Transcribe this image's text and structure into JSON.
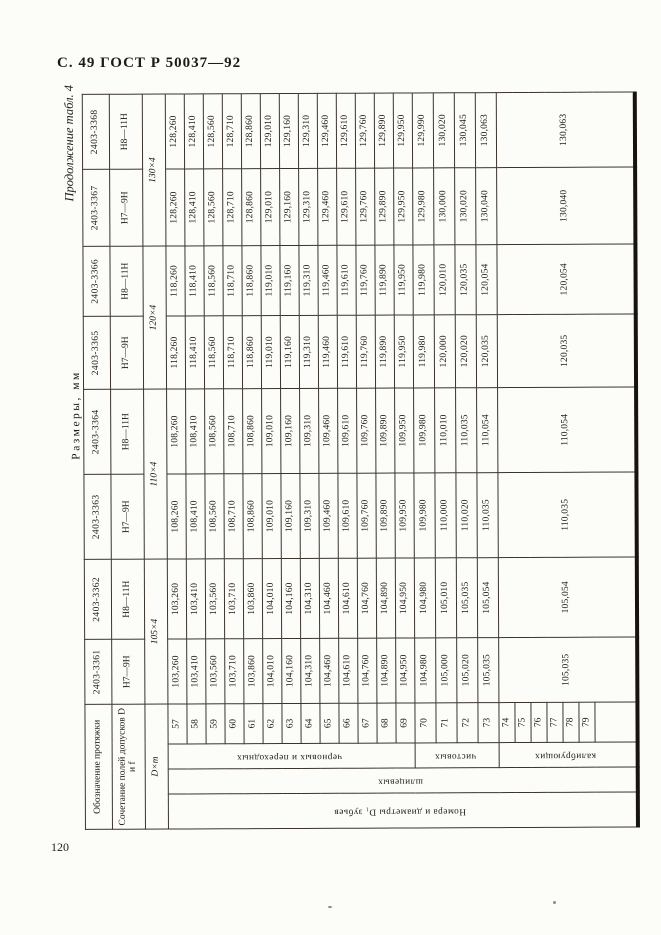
{
  "page": {
    "header": "С. 49 ГОСТ Р 50037—92",
    "continuation": "Продолжение табл. 4",
    "units": "Размеры, мм",
    "page_number": "120"
  },
  "table": {
    "header_rows": {
      "designation": "Обозначение протяжки",
      "tolerance": "Сочетание полей допусков D и f",
      "dxm": "D×m"
    },
    "stub": {
      "outer_label": "Номера и диаметры D₁ зубьев",
      "spline_label": "шлицевых",
      "groups": [
        {
          "label": "черновых и переходных",
          "rows": "57–69"
        },
        {
          "label": "чистовых",
          "rows": "70–73"
        },
        {
          "label": "калибрующих",
          "rows": "74–79"
        }
      ]
    },
    "row_numbers": [
      "57",
      "58",
      "59",
      "60",
      "61",
      "62",
      "63",
      "64",
      "65",
      "66",
      "67",
      "68",
      "69",
      "70",
      "71",
      "72",
      "73",
      "74",
      "75",
      "76",
      "77",
      "78",
      "79"
    ],
    "columns": [
      {
        "designation": "2403-3361",
        "tolerance": "Н7—9Н",
        "dxm": "105×4",
        "rough": [
          "103,260",
          "103,410",
          "103,560",
          "103,710",
          "103,860",
          "104,010",
          "104,160",
          "104,310",
          "104,460",
          "104,610",
          "104,760",
          "104,890",
          "104,950"
        ],
        "finishing": [
          "104,980",
          "105,000",
          "105,020",
          "105,035"
        ],
        "calibrating": "105,035"
      },
      {
        "designation": "2403-3362",
        "tolerance": "Н8—11Н",
        "dxm": "105×4",
        "rough": [
          "103,260",
          "103,410",
          "103,560",
          "103,710",
          "103,860",
          "104,010",
          "104,160",
          "104,310",
          "104,460",
          "104,610",
          "104,760",
          "104,890",
          "104,950"
        ],
        "finishing": [
          "104,980",
          "105,010",
          "105,035",
          "105,054"
        ],
        "calibrating": "105,054"
      },
      {
        "designation": "2403-3363",
        "tolerance": "Н7—9Н",
        "dxm": "110×4",
        "rough": [
          "108,260",
          "108,410",
          "108,560",
          "108,710",
          "108,860",
          "109,010",
          "109,160",
          "109,310",
          "109,460",
          "109,610",
          "109,760",
          "109,890",
          "109,950"
        ],
        "finishing": [
          "109,980",
          "110,000",
          "110,020",
          "110,035"
        ],
        "calibrating": "110,035"
      },
      {
        "designation": "2403-3364",
        "tolerance": "Н8—11Н",
        "dxm": "110×4",
        "rough": [
          "108,260",
          "108,410",
          "108,560",
          "108,710",
          "108,860",
          "109,010",
          "109,160",
          "109,310",
          "109,460",
          "109,610",
          "109,760",
          "109,890",
          "109,950"
        ],
        "finishing": [
          "109,980",
          "110,010",
          "110,035",
          "110,054"
        ],
        "calibrating": "110,054"
      },
      {
        "designation": "2403-3365",
        "tolerance": "Н7—9Н",
        "dxm": "120×4",
        "rough": [
          "118,260",
          "118,410",
          "118,560",
          "118,710",
          "118,860",
          "119,010",
          "119,160",
          "119,310",
          "119,460",
          "119,610",
          "119,760",
          "119,890",
          "119,950"
        ],
        "finishing": [
          "119,980",
          "120,000",
          "120,020",
          "120,035"
        ],
        "calibrating": "120,035"
      },
      {
        "designation": "2403-3366",
        "tolerance": "Н8—11Н",
        "dxm": "120×4",
        "rough": [
          "118,260",
          "118,410",
          "118,560",
          "118,710",
          "118,860",
          "119,010",
          "119,160",
          "119,310",
          "119,460",
          "119,610",
          "119,760",
          "119,890",
          "119,950"
        ],
        "finishing": [
          "119,980",
          "120,010",
          "120,035",
          "120,054"
        ],
        "calibrating": "120,054"
      },
      {
        "designation": "2403-3367",
        "tolerance": "Н7—9Н",
        "dxm": "130×4",
        "rough": [
          "128,260",
          "128,410",
          "128,560",
          "128,710",
          "128,860",
          "129,010",
          "129,160",
          "129,310",
          "129,460",
          "129,610",
          "129,760",
          "129,890",
          "129,950"
        ],
        "finishing": [
          "129,980",
          "130,000",
          "130,020",
          "130,040"
        ],
        "calibrating": "130,040"
      },
      {
        "designation": "2403-3368",
        "tolerance": "Н8—11Н",
        "dxm": "130×4",
        "rough": [
          "128,260",
          "128,410",
          "128,560",
          "128,710",
          "128,860",
          "129,010",
          "129,160",
          "129,310",
          "129,460",
          "129,610",
          "129,760",
          "129,890",
          "129,950"
        ],
        "finishing": [
          "129,990",
          "130,020",
          "130,045",
          "130,063"
        ],
        "calibrating": "130,063"
      }
    ]
  }
}
